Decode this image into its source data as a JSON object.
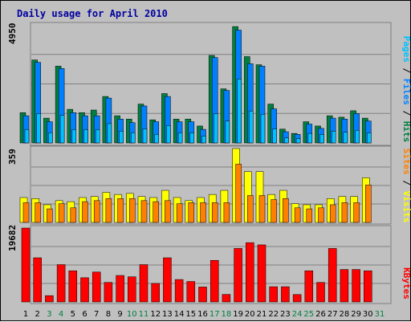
{
  "chart_data": [
    {
      "type": "bar",
      "title": "Daily usage for April 2010",
      "ytick": "4950",
      "ylim": [
        0,
        4950
      ],
      "legend": [
        "Pages",
        "Files",
        "Hits"
      ],
      "legend_separator": " / ",
      "colors": {
        "hits": "#008040",
        "files": "#0080ff",
        "pages": "#00c0ff"
      },
      "categories": [
        "1",
        "2",
        "3",
        "4",
        "5",
        "6",
        "7",
        "8",
        "9",
        "10",
        "11",
        "12",
        "13",
        "14",
        "15",
        "16",
        "17",
        "18",
        "19",
        "20",
        "21",
        "22",
        "23",
        "24",
        "25",
        "26",
        "27",
        "28",
        "29",
        "30",
        "31"
      ],
      "series": [
        {
          "name": "Hits",
          "values": [
            1270,
            3480,
            1040,
            3220,
            1410,
            1270,
            1380,
            1950,
            1140,
            1000,
            1630,
            970,
            2070,
            1000,
            1000,
            710,
            3670,
            2270,
            4880,
            3620,
            3280,
            1630,
            580,
            400,
            890,
            710,
            1140,
            1080,
            1350,
            1040,
            0
          ]
        },
        {
          "name": "Files",
          "values": [
            1140,
            3380,
            890,
            3120,
            1270,
            1140,
            1140,
            1880,
            1000,
            850,
            1550,
            890,
            1950,
            890,
            890,
            570,
            3580,
            2200,
            4730,
            3320,
            3220,
            1430,
            470,
            360,
            790,
            610,
            1040,
            1000,
            1230,
            920,
            0
          ]
        },
        {
          "name": "Pages",
          "values": [
            560,
            1230,
            430,
            1160,
            560,
            560,
            560,
            810,
            490,
            430,
            590,
            360,
            730,
            430,
            430,
            290,
            1220,
            920,
            2680,
            1340,
            1200,
            590,
            210,
            180,
            400,
            360,
            490,
            450,
            530,
            420,
            0
          ]
        }
      ]
    },
    {
      "type": "bar",
      "ytick": "359",
      "ylim": [
        0,
        359
      ],
      "legend": [
        "Sites",
        "Visits"
      ],
      "legend_separator": " / ",
      "colors": {
        "visits": "#ffff00",
        "sites": "#ff8000"
      },
      "categories": [
        "1",
        "2",
        "3",
        "4",
        "5",
        "6",
        "7",
        "8",
        "9",
        "10",
        "11",
        "12",
        "13",
        "14",
        "15",
        "16",
        "17",
        "18",
        "19",
        "20",
        "21",
        "22",
        "23",
        "24",
        "25",
        "26",
        "27",
        "28",
        "29",
        "30",
        "31"
      ],
      "series": [
        {
          "name": "Visits",
          "values": [
            121,
            116,
            86,
            106,
            101,
            121,
            126,
            146,
            136,
            141,
            126,
            121,
            156,
            121,
            106,
            121,
            136,
            156,
            359,
            247,
            247,
            136,
            156,
            91,
            86,
            86,
            116,
            126,
            126,
            217,
            0
          ]
        },
        {
          "name": "Sites",
          "values": [
            96,
            96,
            66,
            91,
            71,
            101,
            106,
            116,
            116,
            116,
            106,
            101,
            106,
            91,
            96,
            96,
            96,
            96,
            283,
            131,
            131,
            111,
            116,
            71,
            66,
            71,
            86,
            96,
            96,
            182,
            0
          ]
        }
      ]
    },
    {
      "type": "bar",
      "ytick": "19682",
      "ylim": [
        0,
        19682
      ],
      "legend": [
        "KBytes"
      ],
      "colors": {
        "kbytes": "#ff0000"
      },
      "categories": [
        "1",
        "2",
        "3",
        "4",
        "5",
        "6",
        "7",
        "8",
        "9",
        "10",
        "11",
        "12",
        "13",
        "14",
        "15",
        "16",
        "17",
        "18",
        "19",
        "20",
        "21",
        "22",
        "23",
        "24",
        "25",
        "26",
        "27",
        "28",
        "29",
        "30",
        "31"
      ],
      "series": [
        {
          "name": "KBytes",
          "values": [
            19682,
            11765,
            1680,
            9940,
            8300,
            6450,
            7960,
            5200,
            7050,
            6700,
            9940,
            4930,
            11765,
            5970,
            5450,
            3980,
            11075,
            2000,
            14250,
            15800,
            15200,
            4050,
            4050,
            1970,
            8300,
            5200,
            14250,
            8650,
            8650,
            8300,
            0
          ]
        }
      ]
    }
  ],
  "x_day_colors": {
    "weekday": "#000000",
    "weekend": "#008040"
  }
}
